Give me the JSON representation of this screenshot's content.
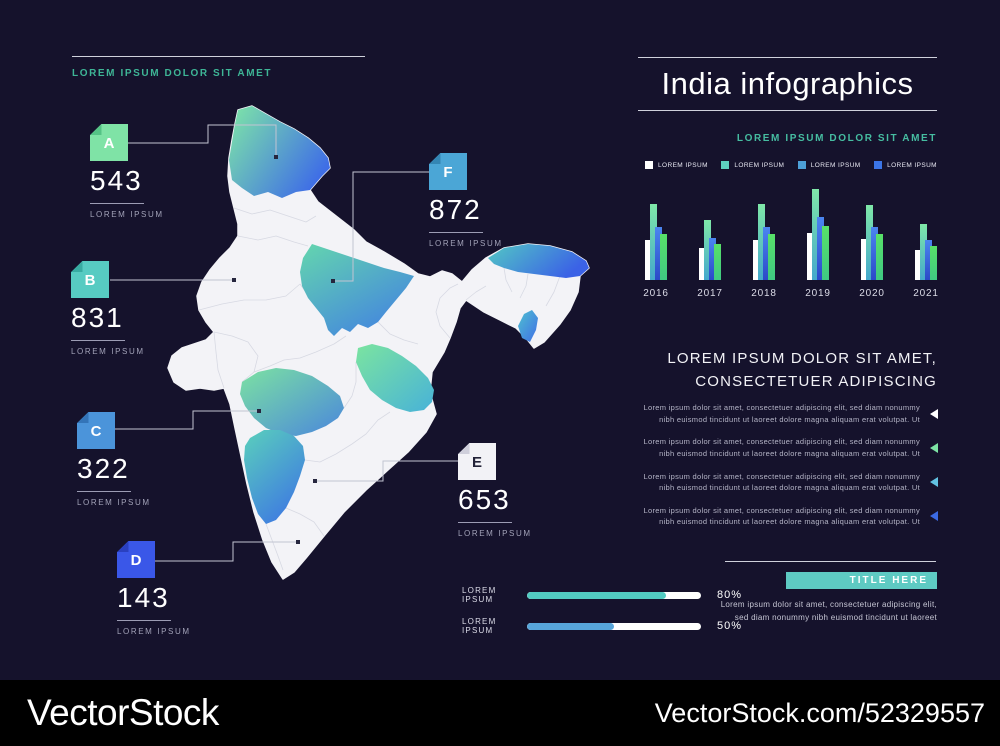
{
  "left_panel": {
    "heading": "LOREM IPSUM DOLOR SIT AMET"
  },
  "markers": [
    {
      "letter": "A",
      "value": "543",
      "label": "LOREM IPSUM",
      "color": "#7fe3a6",
      "fold": "#55c386",
      "text": "#ffffff"
    },
    {
      "letter": "B",
      "value": "831",
      "label": "LOREM IPSUM",
      "color": "#57cbc2",
      "fold": "#38aba2",
      "text": "#ffffff"
    },
    {
      "letter": "C",
      "value": "322",
      "label": "LOREM IPSUM",
      "color": "#4b94da",
      "fold": "#3374b8",
      "text": "#ffffff"
    },
    {
      "letter": "D",
      "value": "143",
      "label": "LOREM IPSUM",
      "color": "#3a57e8",
      "fold": "#2a40c0",
      "text": "#ffffff"
    },
    {
      "letter": "E",
      "value": "653",
      "label": "LOREM IPSUM",
      "color": "#f2f2f6",
      "fold": "#cfcfdb",
      "text": "#232338"
    },
    {
      "letter": "F",
      "value": "872",
      "label": "LOREM IPSUM",
      "color": "#4ba6d6",
      "fold": "#3486b4",
      "text": "#ffffff"
    }
  ],
  "right_panel": {
    "title": "India infographics",
    "subtitle": "LOREM IPSUM DOLOR SIT AMET",
    "legend": [
      {
        "label": "LOREM IPSUM",
        "color": "#ffffff"
      },
      {
        "label": "LOREM IPSUM",
        "color": "#5ed0c0"
      },
      {
        "label": "LOREM IPSUM",
        "color": "#4da0d8"
      },
      {
        "label": "LOREM IPSUM",
        "color": "#3b74e6"
      }
    ],
    "section_heading_line1": "LOREM IPSUM DOLOR SIT AMET,",
    "section_heading_line2": "CONSECTETUER ADIPISCING",
    "bullets": [
      {
        "text": "Lorem ipsum dolor sit amet, consectetuer adipiscing elit, sed diam nonummy nibh euismod tincidunt ut laoreet dolore magna aliquam erat volutpat. Ut",
        "arrow_color": "#ffffff"
      },
      {
        "text": "Lorem ipsum dolor sit amet, consectetuer adipiscing elit, sed diam nonummy nibh euismod tincidunt ut laoreet dolore magna aliquam erat volutpat. Ut",
        "arrow_color": "#7de3a5"
      },
      {
        "text": "Lorem ipsum dolor sit amet, consectetuer adipiscing elit, sed diam nonummy nibh euismod tincidunt ut laoreet dolore magna aliquam erat volutpat. Ut",
        "arrow_color": "#62c2e2"
      },
      {
        "text": "Lorem ipsum dolor sit amet, consectetuer adipiscing elit, sed diam nonummy nibh euismod tincidunt ut laoreet dolore magna aliquam erat volutpat. Ut",
        "arrow_color": "#3b6ae4"
      }
    ],
    "title_box": {
      "label": "TITLE HERE",
      "color": "#5ecac3",
      "description_line1": "Lorem ipsum dolor sit amet, consectetuer adipiscing elit,",
      "description_line2": "sed diam nonummy nibh euismod tincidunt ut laoreet"
    }
  },
  "progress": {
    "rows": [
      {
        "label": "LOREM IPSUM",
        "percent": 80,
        "display": "80%",
        "color": "#52cbc2"
      },
      {
        "label": "LOREM IPSUM",
        "percent": 50,
        "display": "50%",
        "color": "#57a5da"
      }
    ]
  },
  "chart_data": {
    "type": "bar",
    "title": "",
    "xlabel": "",
    "ylabel": "",
    "categories": [
      "2016",
      "2017",
      "2018",
      "2019",
      "2020",
      "2021"
    ],
    "series": [
      {
        "name": "lorem-ipsum-white",
        "color": "#ffffff",
        "values": [
          40,
          32,
          40,
          47,
          41,
          30
        ]
      },
      {
        "name": "lorem-ipsum-teal",
        "color_top": "#7fe8a8",
        "color_bottom": "#44a8cc",
        "values": [
          76,
          60,
          76,
          91,
          75,
          56
        ]
      },
      {
        "name": "lorem-ipsum-blue",
        "color_top": "#4b86f0",
        "color_bottom": "#2b49c8",
        "values": [
          53,
          42,
          53,
          63,
          53,
          40
        ]
      },
      {
        "name": "lorem-ipsum-green",
        "color_top": "#58e168",
        "color_bottom": "#3fc983",
        "values": [
          46,
          36,
          46,
          54,
          46,
          34
        ]
      }
    ],
    "ylim": [
      0,
      100
    ],
    "grid": false,
    "legend_position": "top"
  },
  "watermark": {
    "left": "VectorStock",
    "right": "VectorStock.com/52329557"
  }
}
